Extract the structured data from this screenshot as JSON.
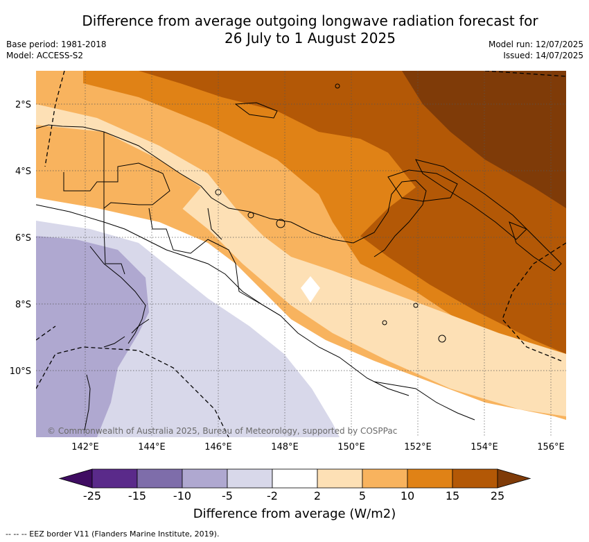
{
  "title": {
    "line1": "Difference from average outgoing longwave radiation forecast for",
    "line2": "26 July to 1 August 2025"
  },
  "meta_left": {
    "base_period": "Base period: 1981-2018",
    "model": "Model: ACCESS-S2"
  },
  "meta_right": {
    "model_run": "Model run: 12/07/2025",
    "issued": "Issued: 14/07/2025"
  },
  "map": {
    "lat_labels": [
      "2°S",
      "4°S",
      "6°S",
      "8°S",
      "10°S"
    ],
    "lon_labels": [
      "142°E",
      "144°E",
      "146°E",
      "148°E",
      "150°E",
      "152°E",
      "154°E",
      "156°E"
    ],
    "copyright": "© Commonwealth of Australia 2025, Bureau of Meteorology, supported by COSPPac"
  },
  "colorbar": {
    "labels": [
      "-25",
      "-15",
      "-10",
      "-5",
      "-2",
      "2",
      "5",
      "10",
      "15",
      "25"
    ],
    "colors": [
      "#3f0c62",
      "#5a2a8a",
      "#7e6daa",
      "#afa8d0",
      "#d8d8ea",
      "#ffffff",
      "#fde0b5",
      "#f8b35e",
      "#e08216",
      "#b35806",
      "#7f3b08"
    ],
    "title": "Difference from average (W/m2)"
  },
  "footnote": "--  --  -- EEZ border V11 (Flanders Marine Institute, 2019)."
}
